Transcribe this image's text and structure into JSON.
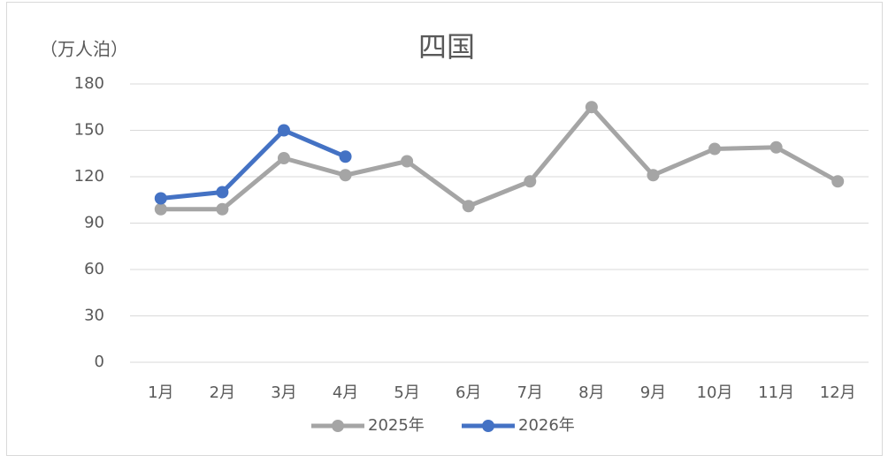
{
  "chart_data": {
    "type": "line",
    "title": "四国",
    "y_label": "（万人泊）",
    "categories": [
      "1月",
      "2月",
      "3月",
      "4月",
      "5月",
      "6月",
      "7月",
      "8月",
      "9月",
      "10月",
      "11月",
      "12月"
    ],
    "series": [
      {
        "name": "2025年",
        "color": "#a5a5a5",
        "values": [
          99,
          99,
          132,
          121,
          130,
          101,
          117,
          165,
          121,
          138,
          139,
          117
        ]
      },
      {
        "name": "2026年",
        "color": "#4472c4",
        "values": [
          106,
          110,
          150,
          133,
          null,
          null,
          null,
          null,
          null,
          null,
          null,
          null
        ]
      }
    ],
    "ylim": [
      0,
      180
    ],
    "yticks": [
      0,
      30,
      60,
      90,
      120,
      150,
      180
    ],
    "grid": true,
    "legend": "bottom"
  }
}
